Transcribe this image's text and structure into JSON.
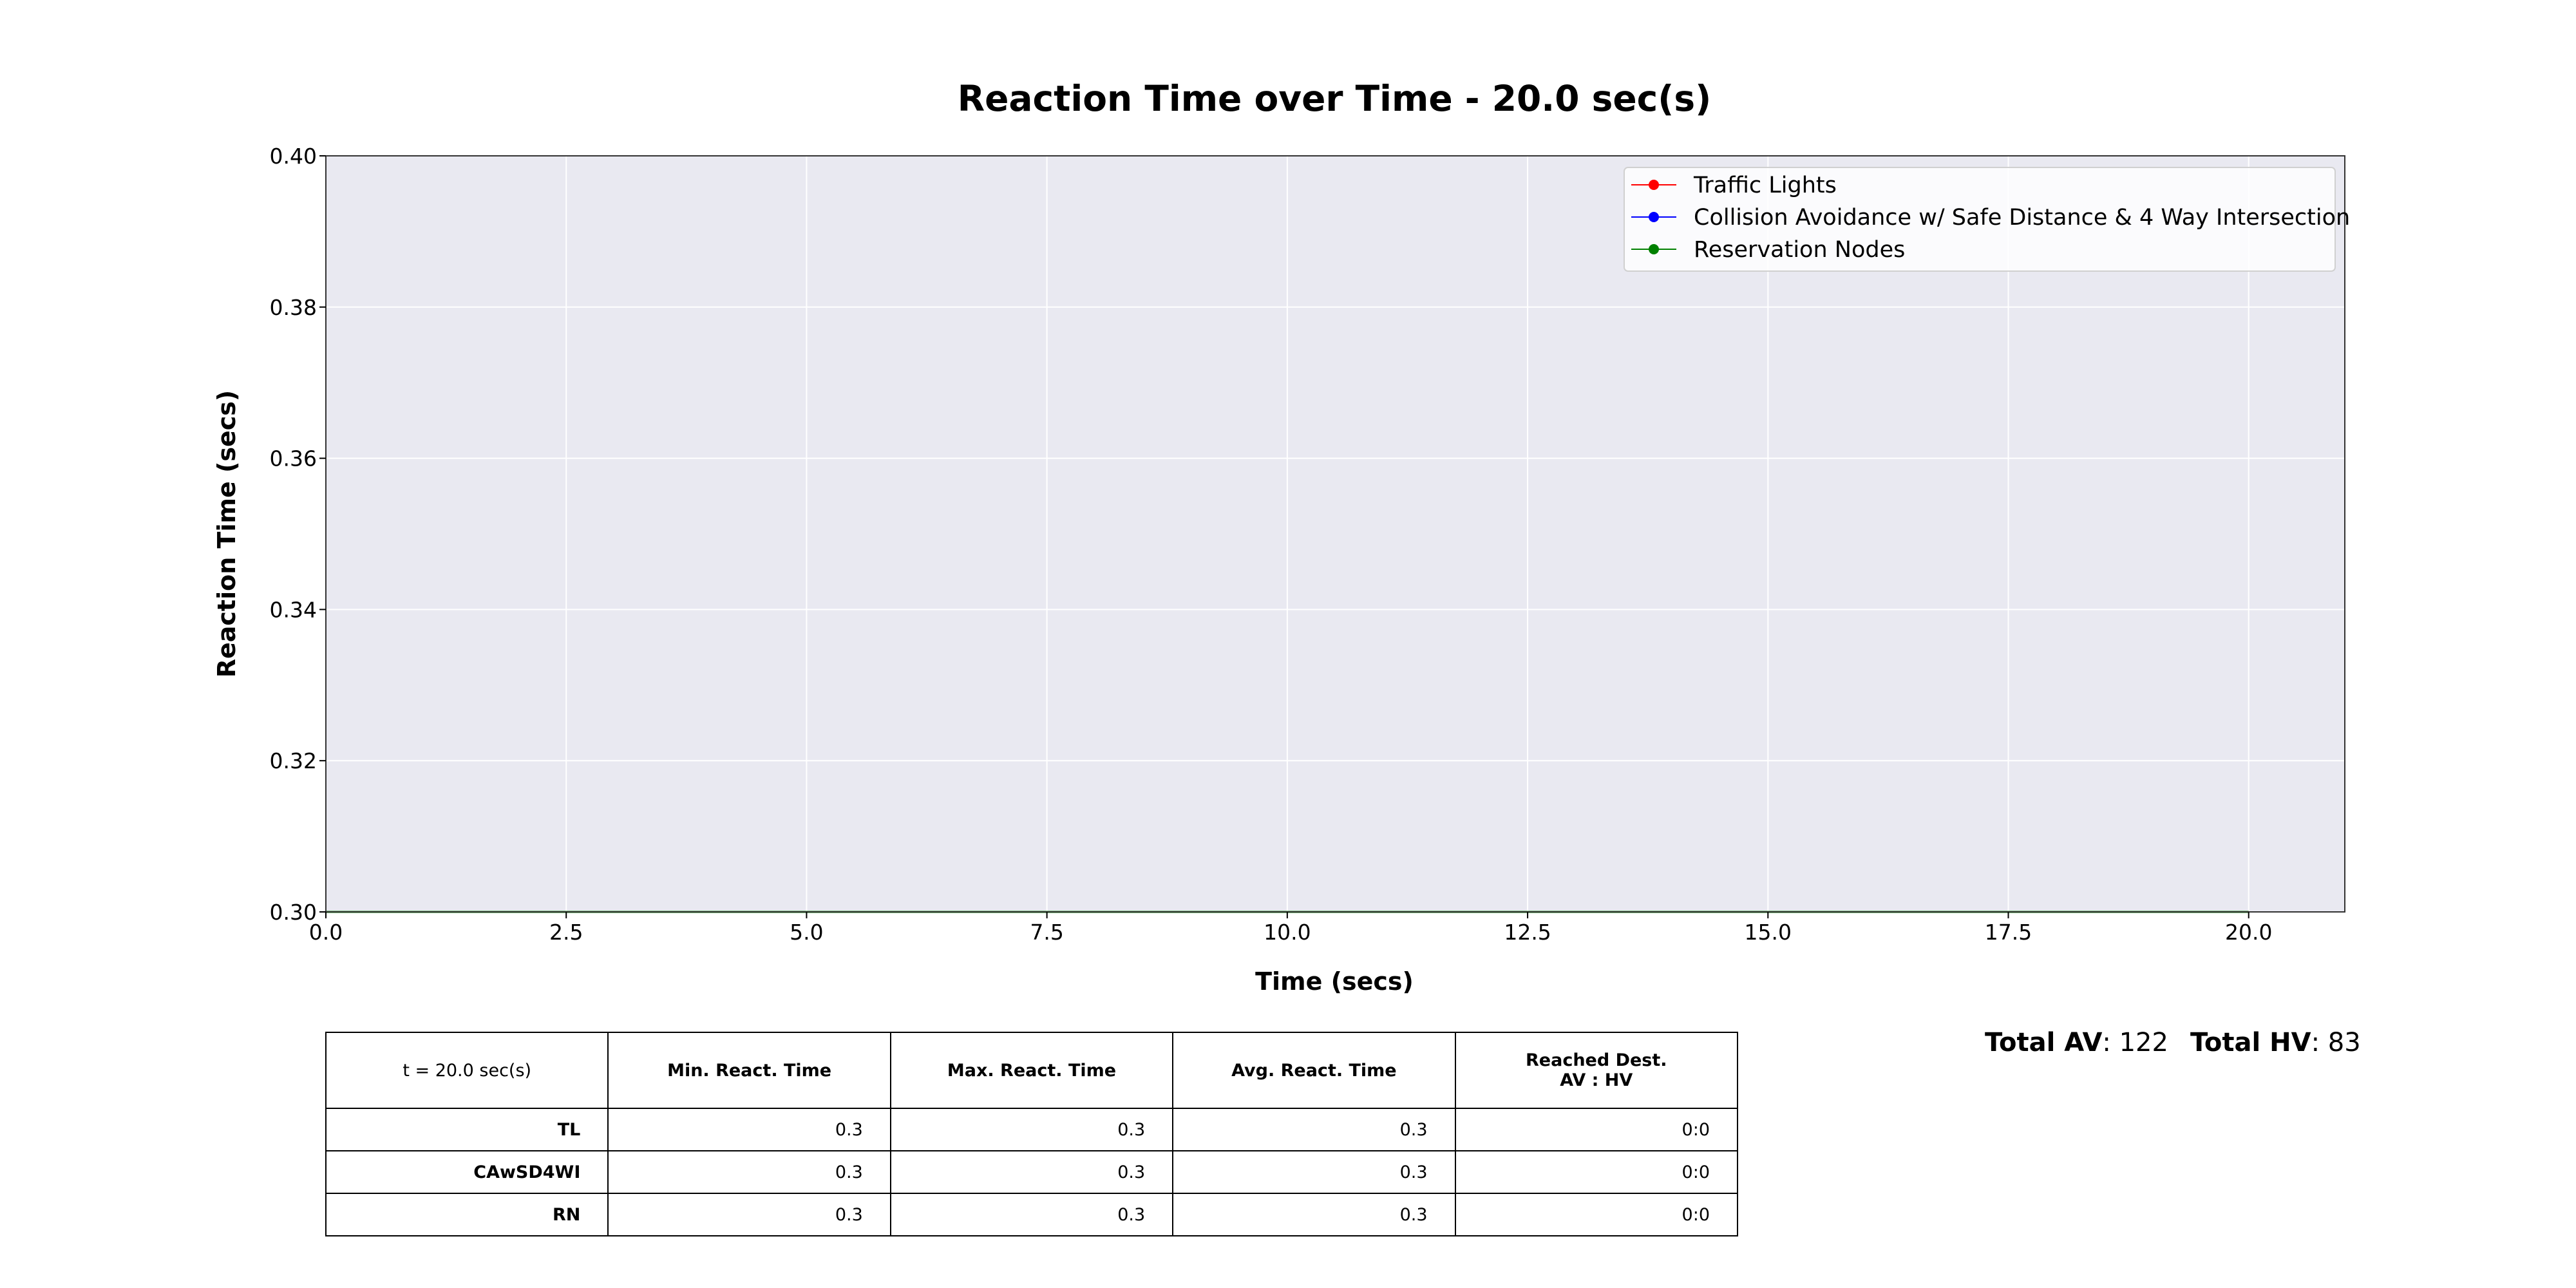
{
  "chart_data": {
    "type": "line",
    "title": "Reaction Time over Time - 20.0 sec(s)",
    "xlabel": "Time (secs)",
    "ylabel": "Reaction Time (secs)",
    "xlim": [
      0,
      21
    ],
    "ylim": [
      0.3,
      0.4
    ],
    "xticks": [
      "0.0",
      "2.5",
      "5.0",
      "7.5",
      "10.0",
      "12.5",
      "15.0",
      "17.5",
      "20.0"
    ],
    "yticks": [
      "0.30",
      "0.32",
      "0.34",
      "0.36",
      "0.38",
      "0.40"
    ],
    "grid": true,
    "legend_position": "top-right",
    "x": [
      0,
      20
    ],
    "series": [
      {
        "name": "Traffic Lights",
        "color": "#ff0000",
        "values": [
          0.3,
          0.3
        ]
      },
      {
        "name": "Collision Avoidance w/ Safe Distance & 4 Way Intersection",
        "color": "#0000ff",
        "values": [
          0.3,
          0.3
        ]
      },
      {
        "name": "Reservation Nodes",
        "color": "#008000",
        "values": [
          0.3,
          0.3
        ]
      }
    ],
    "plot_background": "#e9e9f1"
  },
  "table": {
    "corner": "t = 20.0 sec(s)",
    "headers": [
      "Min. React. Time",
      "Max. React. Time",
      "Avg. React. Time",
      "Reached Dest."
    ],
    "header_sub": "AV : HV",
    "rows": [
      {
        "label": "TL",
        "cells": [
          "0.3",
          "0.3",
          "0.3",
          "0:0"
        ]
      },
      {
        "label": "CAwSD4WI",
        "cells": [
          "0.3",
          "0.3",
          "0.3",
          "0:0"
        ]
      },
      {
        "label": "RN",
        "cells": [
          "0.3",
          "0.3",
          "0.3",
          "0:0"
        ]
      }
    ]
  },
  "totals": {
    "av_label": "Total AV",
    "av_value": ": 122",
    "hv_label": "Total HV",
    "hv_value": ": 83"
  }
}
